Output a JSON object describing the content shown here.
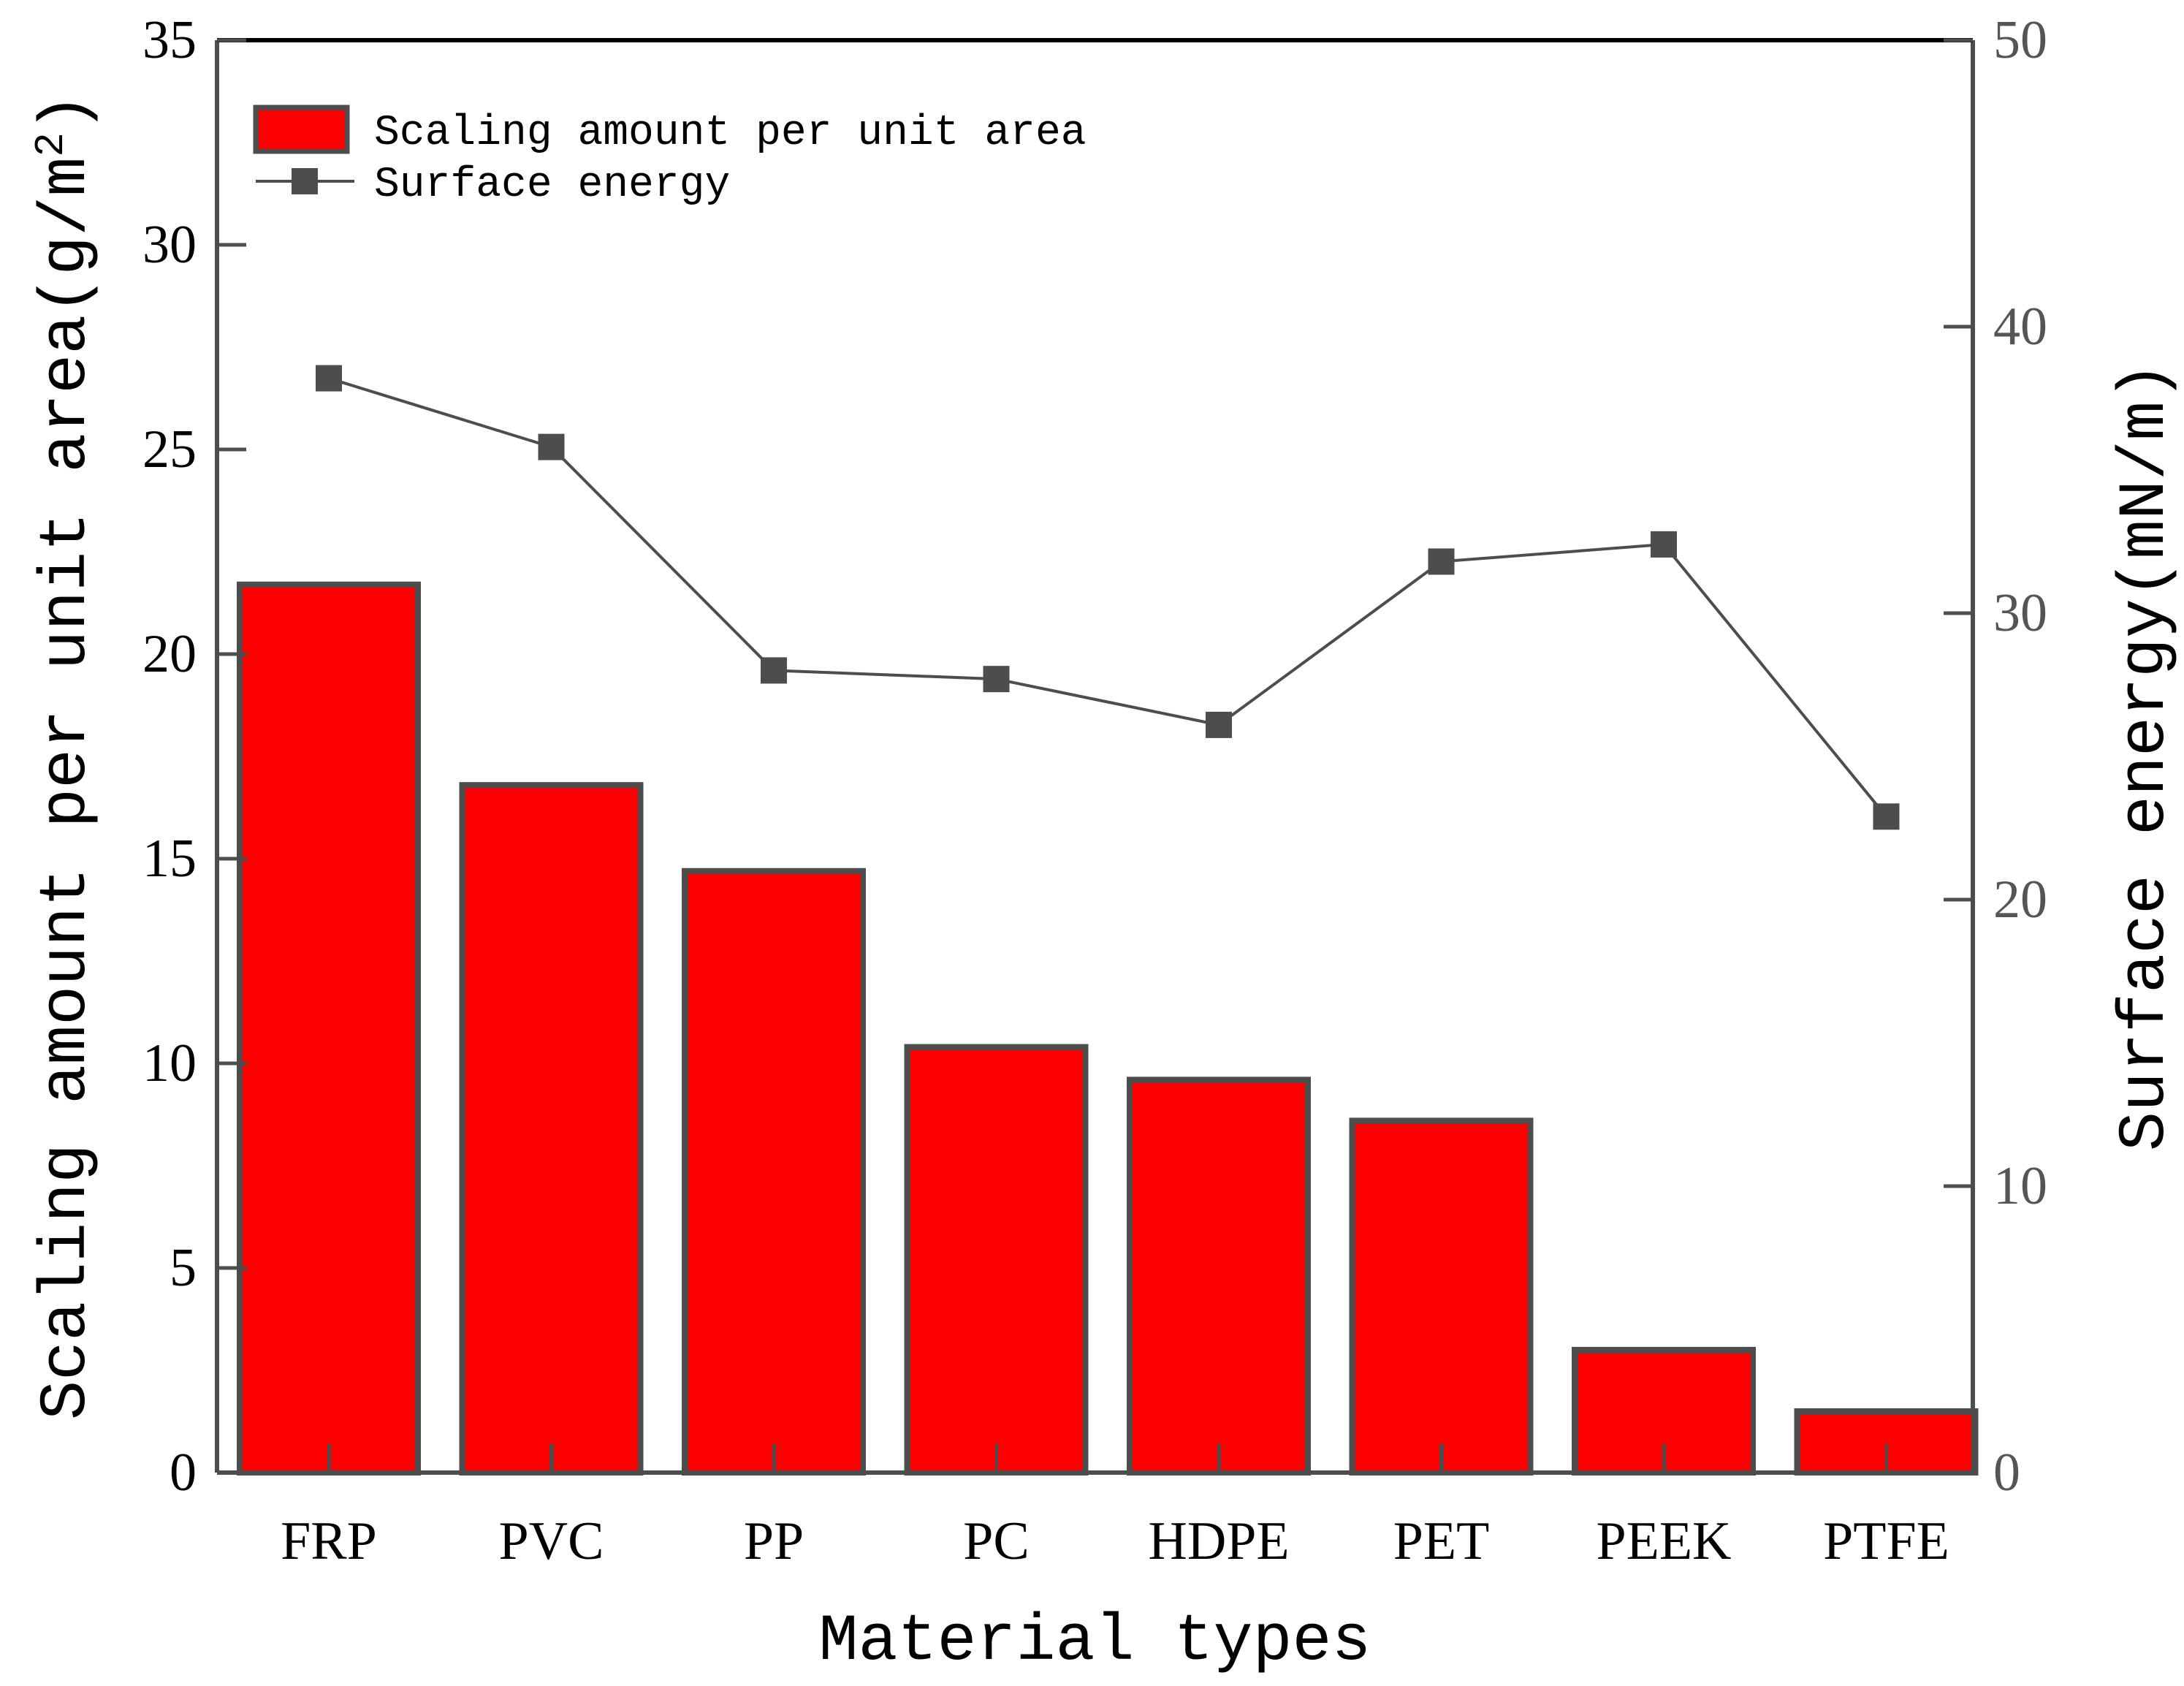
{
  "chart_data": {
    "type": "bar",
    "xlabel": "Material types",
    "ylabel": "Scaling amount per unit area",
    "ylabel_unit_prefix": "(g/m",
    "ylabel_unit_sup": "2",
    "ylabel_unit_suffix": ")",
    "y2label": "Surface energy",
    "y2label_unit": "(mN/m)",
    "ylim": [
      0,
      35
    ],
    "y2lim": [
      0,
      50
    ],
    "yticks": [
      "0",
      "5",
      "10",
      "15",
      "20",
      "25",
      "30",
      "35"
    ],
    "y2ticks": [
      "0",
      "10",
      "20",
      "30",
      "40",
      "50"
    ],
    "categories": [
      "FRP",
      "PVC",
      "PP",
      "PC",
      "HDPE",
      "PET",
      "PEEK",
      "PTFE"
    ],
    "series": [
      {
        "name": "Scaling amount per unit area",
        "type": "bar",
        "axis": "left",
        "values": [
          21.7,
          16.8,
          14.7,
          10.4,
          9.6,
          8.6,
          3.0,
          1.5
        ]
      },
      {
        "name": "Surface energy",
        "type": "line",
        "axis": "right",
        "values": [
          38.2,
          35.8,
          28.0,
          27.7,
          26.1,
          31.8,
          32.4,
          22.9
        ]
      }
    ],
    "colors": {
      "bar_fill": "#ff0000",
      "bar_stroke": "#4d4d4d",
      "line": "#4d4d4d",
      "marker": "#4d4d4d",
      "axis": "#4d4d4d",
      "top_frame": "#000000",
      "right_axis_text": "#555555"
    },
    "legend": {
      "position": "top-left",
      "entries": [
        {
          "label": "Scaling amount per unit area",
          "kind": "bar"
        },
        {
          "label": "Surface energy",
          "kind": "line-marker"
        }
      ]
    },
    "grid": false
  }
}
